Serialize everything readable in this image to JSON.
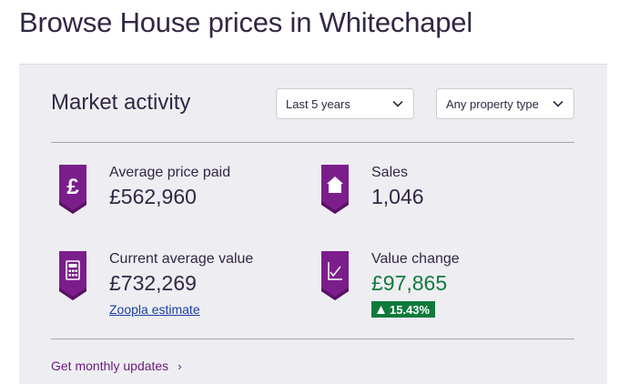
{
  "page_title": "Browse House prices in Whitechapel",
  "market": {
    "heading": "Market activity",
    "period_select": {
      "value": "Last 5 years"
    },
    "type_select": {
      "value": "Any property type"
    },
    "stats": {
      "avg_price_paid": {
        "label": "Average price paid",
        "value": "£562,960",
        "icon": "pound-icon"
      },
      "sales": {
        "label": "Sales",
        "value": "1,046",
        "icon": "house-icon"
      },
      "current_avg_value": {
        "label": "Current average value",
        "value": "£732,269",
        "icon": "calculator-icon",
        "link_label": "Zoopla estimate"
      },
      "value_change": {
        "label": "Value change",
        "value": "£97,865",
        "icon": "line-chart-icon",
        "change_pct": "15.43%",
        "change_direction": "up"
      }
    },
    "monthly_updates_label": "Get monthly updates"
  },
  "colors": {
    "badge_purple": "#7b1e8c",
    "badge_purple_dark": "#5a1166",
    "positive_green": "#0f7a3c",
    "link_purple": "#6b1a7a",
    "link_blue": "#1a3fa0"
  }
}
